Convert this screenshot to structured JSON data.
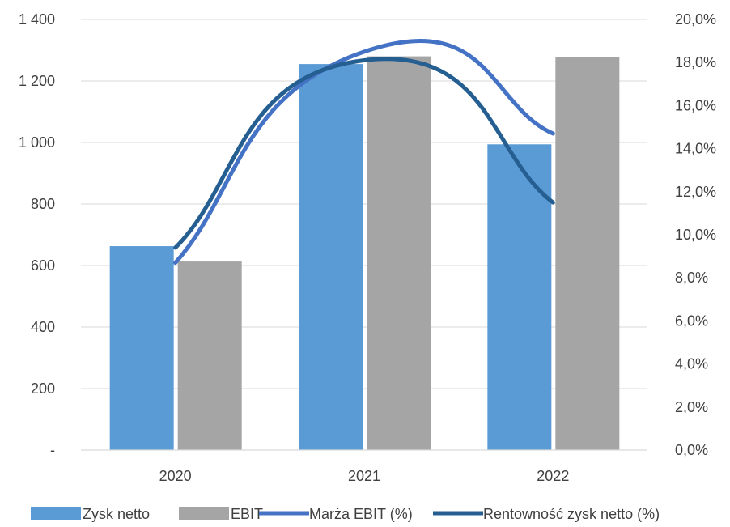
{
  "chart_data": {
    "type": "bar",
    "categories": [
      "2020",
      "2021",
      "2022"
    ],
    "series": [
      {
        "name": "Zysk netto",
        "kind": "bar",
        "axis": "left",
        "color": "#5b9bd5",
        "values": [
          663,
          1255,
          994
        ]
      },
      {
        "name": "EBIT",
        "kind": "bar",
        "axis": "left",
        "color": "#a5a5a5",
        "values": [
          613,
          1280,
          1277
        ]
      },
      {
        "name": "Marża EBIT (%)",
        "kind": "line",
        "axis": "right",
        "color": "#4472c4",
        "values": [
          8.7,
          18.5,
          14.7
        ]
      },
      {
        "name": "Rentowność zysk netto (%)",
        "kind": "line",
        "axis": "right",
        "color": "#255e91",
        "values": [
          9.4,
          18.1,
          11.5
        ]
      }
    ],
    "y_left": {
      "range": [
        0,
        1400
      ],
      "ticks": [
        0,
        200,
        400,
        600,
        800,
        1000,
        1200,
        1400
      ],
      "tick_labels": [
        "-",
        "200",
        "400",
        "600",
        "800",
        "1 000",
        "1 200",
        "1 400"
      ]
    },
    "y_right": {
      "range": [
        0,
        20
      ],
      "ticks": [
        0,
        2,
        4,
        6,
        8,
        10,
        12,
        14,
        16,
        18,
        20
      ],
      "tick_labels": [
        "0,0%",
        "2,0%",
        "4,0%",
        "6,0%",
        "8,0%",
        "10,0%",
        "12,0%",
        "14,0%",
        "16,0%",
        "18,0%",
        "20,0%"
      ]
    },
    "grid": true,
    "legend_position": "bottom",
    "smooth_lines": true
  }
}
